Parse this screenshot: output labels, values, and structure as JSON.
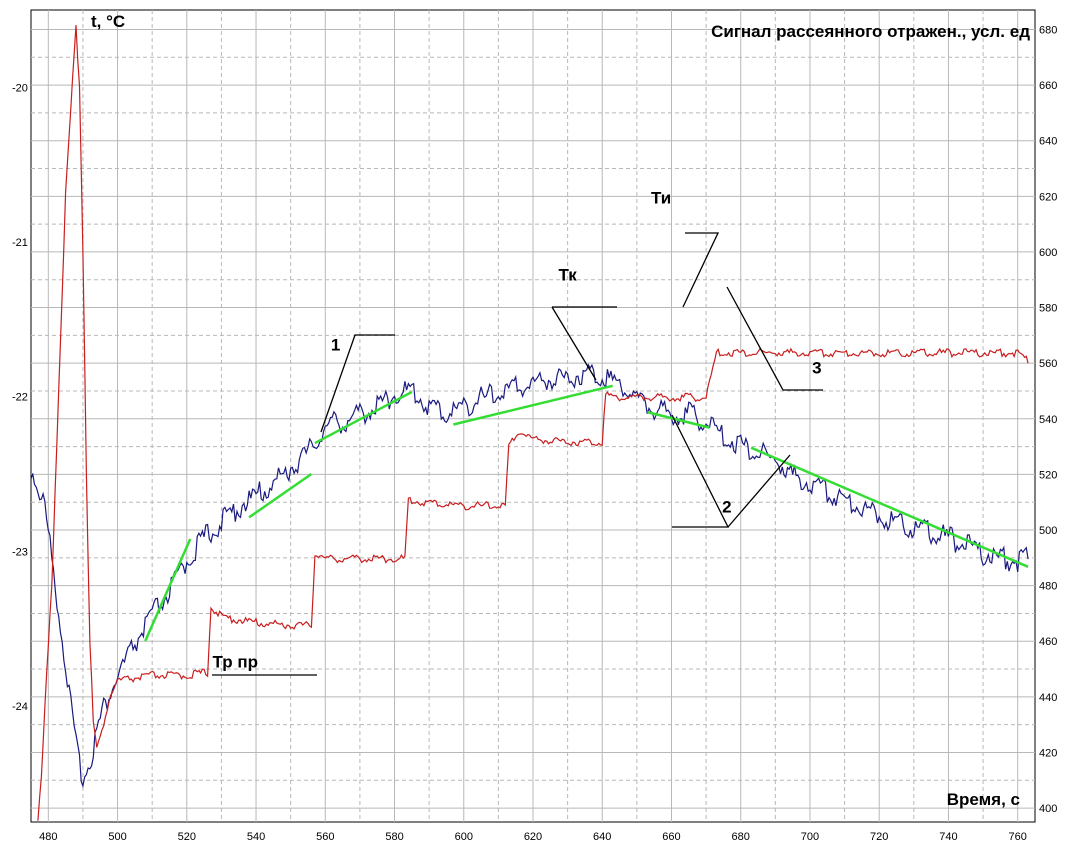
{
  "chart_data": {
    "type": "line",
    "title": "",
    "ylabel_left": "t, °C",
    "ylabel_right": "Сигнал рассеянного отражен., усл. ед",
    "xlabel": "Время, с",
    "xlim": [
      475,
      765
    ],
    "ylim_left": [
      -24.75,
      -19.5
    ],
    "ylim_right": [
      395,
      687
    ],
    "grid": true,
    "x_ticks": [
      480,
      500,
      520,
      540,
      560,
      580,
      600,
      620,
      640,
      660,
      680,
      700,
      720,
      740,
      760
    ],
    "y_left_ticks": [
      -20,
      -21,
      -22,
      -23,
      -24
    ],
    "y_right_ticks": [
      400,
      420,
      440,
      460,
      480,
      500,
      520,
      540,
      560,
      580,
      600,
      620,
      640,
      660,
      680
    ],
    "colors": {
      "temperature": "#c81e1e",
      "signal": "#1a1a80",
      "fit": "#33dd33",
      "grid": "#b8b8b8"
    },
    "series": [
      {
        "axis": "left",
        "points": [
          [
            475,
            -22.5
          ],
          [
            479,
            -22.75
          ],
          [
            482,
            -23.25
          ],
          [
            484,
            -23.6
          ],
          [
            486,
            -23.95
          ],
          [
            488,
            -24.3
          ],
          [
            490,
            -24.5
          ],
          [
            492,
            -24.4
          ],
          [
            494,
            -24.2
          ],
          [
            496,
            -24.05
          ],
          [
            498,
            -23.95
          ],
          [
            500,
            -23.85
          ],
          [
            503,
            -23.72
          ],
          [
            506,
            -23.6
          ],
          [
            510,
            -23.45
          ],
          [
            515,
            -23.3
          ],
          [
            520,
            -23.1
          ],
          [
            525,
            -22.95
          ],
          [
            530,
            -22.85
          ],
          [
            535,
            -22.75
          ],
          [
            540,
            -22.68
          ],
          [
            545,
            -22.6
          ],
          [
            550,
            -22.5
          ],
          [
            555,
            -22.4
          ],
          [
            558,
            -22.3
          ],
          [
            562,
            -22.2
          ],
          [
            566,
            -22.2
          ],
          [
            570,
            -22.15
          ],
          [
            575,
            -22.1
          ],
          [
            580,
            -22.02
          ],
          [
            585,
            -22.0
          ],
          [
            590,
            -22.1
          ],
          [
            595,
            -22.15
          ],
          [
            600,
            -22.1
          ],
          [
            605,
            -22.05
          ],
          [
            610,
            -22.02
          ],
          [
            615,
            -21.98
          ],
          [
            620,
            -21.95
          ],
          [
            625,
            -21.92
          ],
          [
            630,
            -21.92
          ],
          [
            635,
            -21.88
          ],
          [
            640,
            -21.9
          ],
          [
            645,
            -21.95
          ],
          [
            650,
            -22.05
          ],
          [
            655,
            -22.12
          ],
          [
            660,
            -22.15
          ],
          [
            665,
            -22.15
          ],
          [
            670,
            -22.2
          ],
          [
            675,
            -22.3
          ],
          [
            680,
            -22.35
          ],
          [
            685,
            -22.4
          ],
          [
            690,
            -22.45
          ],
          [
            695,
            -22.55
          ],
          [
            700,
            -22.6
          ],
          [
            705,
            -22.65
          ],
          [
            710,
            -22.7
          ],
          [
            715,
            -22.75
          ],
          [
            720,
            -22.8
          ],
          [
            725,
            -22.85
          ],
          [
            730,
            -22.88
          ],
          [
            735,
            -22.92
          ],
          [
            740,
            -22.95
          ],
          [
            745,
            -23.0
          ],
          [
            750,
            -23.05
          ],
          [
            755,
            -23.08
          ],
          [
            760,
            -23.1
          ],
          [
            763,
            -23.05
          ]
        ]
      },
      {
        "axis": "right",
        "points": [
          [
            477,
            395
          ],
          [
            478,
            410
          ],
          [
            479,
            435
          ],
          [
            481,
            480
          ],
          [
            483,
            550
          ],
          [
            485,
            620
          ],
          [
            487,
            660
          ],
          [
            488,
            680
          ],
          [
            489,
            660
          ],
          [
            490,
            600
          ],
          [
            491,
            520
          ],
          [
            492,
            460
          ],
          [
            493,
            430
          ],
          [
            494,
            421
          ],
          [
            495,
            424
          ],
          [
            496,
            430
          ],
          [
            498,
            440
          ],
          [
            500,
            445
          ],
          [
            505,
            446
          ],
          [
            510,
            447
          ],
          [
            520,
            447
          ],
          [
            525,
            448
          ],
          [
            526,
            448
          ],
          [
            527,
            472
          ],
          [
            530,
            468
          ],
          [
            540,
            466
          ],
          [
            550,
            465
          ],
          [
            555,
            465
          ],
          [
            556,
            465
          ],
          [
            557,
            491
          ],
          [
            560,
            489
          ],
          [
            570,
            489
          ],
          [
            580,
            489
          ],
          [
            583,
            489
          ],
          [
            584,
            510
          ],
          [
            590,
            509
          ],
          [
            600,
            508
          ],
          [
            612,
            508
          ],
          [
            613,
            529
          ],
          [
            616,
            535
          ],
          [
            620,
            532
          ],
          [
            630,
            531
          ],
          [
            640,
            531
          ],
          [
            641,
            548
          ],
          [
            645,
            547
          ],
          [
            655,
            547
          ],
          [
            670,
            547
          ],
          [
            671,
            552
          ],
          [
            673,
            563
          ],
          [
            680,
            563
          ],
          [
            690,
            563
          ],
          [
            700,
            563
          ],
          [
            720,
            563
          ],
          [
            740,
            563
          ],
          [
            760,
            563
          ],
          [
            763,
            560
          ]
        ]
      }
    ],
    "annotations": [
      {
        "text": "1",
        "x": 563,
        "y_left": -21.7
      },
      {
        "text": "2",
        "x": 676,
        "y_left": -22.75
      },
      {
        "text": "3",
        "x": 702,
        "y_left": -21.85
      },
      {
        "text": "Тк",
        "x": 630,
        "y_left": -21.25
      },
      {
        "text": "Ти",
        "x": 657,
        "y_left": -20.75
      },
      {
        "text": "Тр пр",
        "x": 534,
        "y_left": -23.75
      }
    ]
  }
}
